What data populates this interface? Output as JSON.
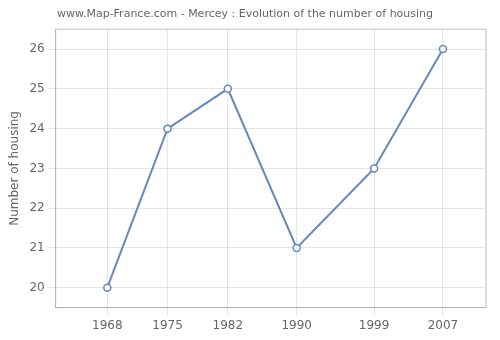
{
  "chart_data": {
    "type": "line",
    "title": "www.Map-France.com - Mercey : Evolution of the number of housing",
    "ylabel": "Number of housing",
    "x": [
      1968,
      1975,
      1982,
      1990,
      1999,
      2007
    ],
    "values": [
      20,
      24,
      25,
      21,
      23,
      26
    ],
    "color": "#6688bb",
    "marker": "circle",
    "xlim": [
      1962,
      2012
    ],
    "ylim": [
      19.5,
      26.5
    ],
    "xticks": [
      1968,
      1975,
      1982,
      1990,
      1999,
      2007
    ],
    "yticks": [
      20,
      21,
      22,
      23,
      24,
      25,
      26
    ],
    "grid": true
  }
}
